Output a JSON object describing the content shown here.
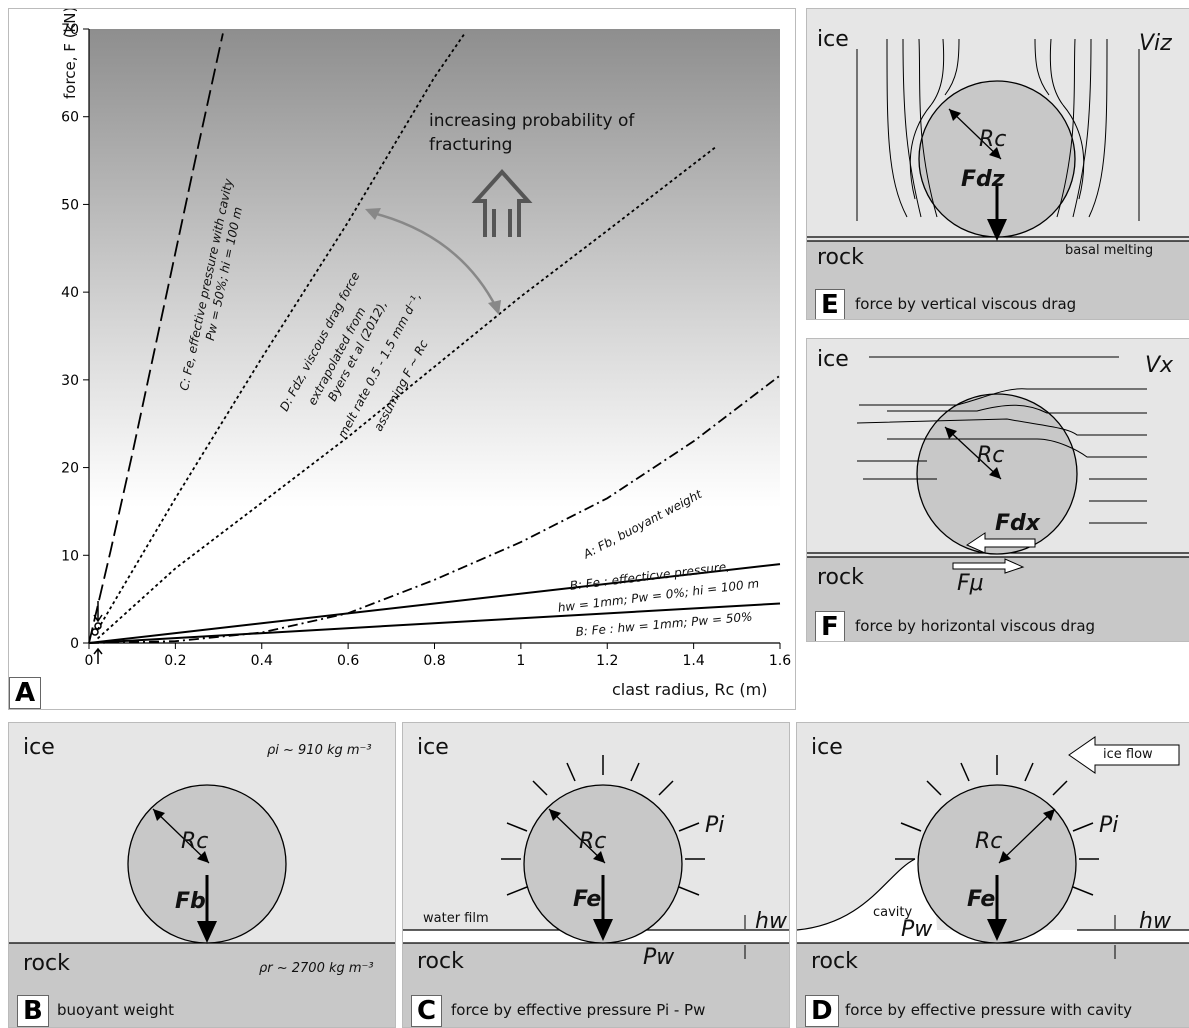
{
  "panel_a": {
    "tag": "A",
    "ylabel": "force, F (kN)",
    "xlabel": "clast radius, Rc (m)",
    "probability_text_1": "increasing  probability of",
    "probability_text_2": "fracturing",
    "curve_c_1": "C: Fe, effective pressure with cavity",
    "curve_c_2": "Pw = 50%; hi = 100 m",
    "curve_d_1": "D: Fdz, viscous drag force",
    "curve_d_2": "extrapolated from",
    "curve_d_3": "Byers et al (2012),",
    "curve_d_4": "melt rate 0.5 - 1.5 mm d⁻¹,",
    "curve_d_5": "assuming F ~ Rc",
    "curve_a": "A: Fb, buoyant weight",
    "curve_b1_1": "B: Fe : effecticve pressure,",
    "curve_b1_2": "hw = 1mm; Pw = 0%;  hi = 100 m",
    "curve_b2": "B: Fe : hw = 1mm; Pw = 50%"
  },
  "chart_data": {
    "type": "line",
    "xlabel": "clast radius, Rc (m)",
    "ylabel": "force, F (kN)",
    "xlim": [
      0,
      1.6
    ],
    "ylim": [
      0,
      70
    ],
    "x_ticks": [
      "0",
      "0.2",
      "0.4",
      "0.6",
      "0.8",
      "1",
      "1.2",
      "1.4",
      "1.6"
    ],
    "y_ticks": [
      "0",
      "10",
      "20",
      "30",
      "40",
      "50",
      "60",
      "70"
    ],
    "series": [
      {
        "name": "C: Fe, effective pressure with cavity",
        "style": "dashed-long",
        "x": [
          0,
          0.05,
          0.1,
          0.15,
          0.2,
          0.25,
          0.31
        ],
        "y": [
          0,
          10.5,
          21.5,
          33,
          44.5,
          56,
          69.5
        ]
      },
      {
        "name": "D: Fdz, viscous drag force (upper)",
        "style": "dotted",
        "x": [
          0.02,
          0.2,
          0.4,
          0.6,
          0.8,
          0.87
        ],
        "y": [
          1.5,
          16.5,
          32.5,
          48,
          64.5,
          69.5
        ]
      },
      {
        "name": "D: Fdz, viscous drag force (lower)",
        "style": "dotted",
        "x": [
          0.02,
          0.2,
          0.4,
          0.6,
          0.8,
          1.0,
          1.2,
          1.45
        ],
        "y": [
          0.5,
          8.5,
          16,
          23.5,
          31.5,
          39.5,
          47,
          56.5
        ]
      },
      {
        "name": "A: Fb, buoyant weight",
        "style": "dashdot",
        "x": [
          0,
          0.2,
          0.4,
          0.6,
          0.8,
          1.0,
          1.2,
          1.4,
          1.6
        ],
        "y": [
          0,
          0.2,
          1.2,
          3.4,
          7.2,
          11.5,
          16.5,
          23,
          30.5
        ]
      },
      {
        "name": "B: Fe : effecticve pressure, hw = 1mm; Pw = 0%; hi = 100 m",
        "style": "solid",
        "x": [
          0,
          1.6
        ],
        "y": [
          0,
          9
        ]
      },
      {
        "name": "B: Fe : hw = 1mm; Pw = 50%",
        "style": "solid",
        "x": [
          0,
          1.6
        ],
        "y": [
          0,
          4.5
        ]
      }
    ]
  },
  "panel_b": {
    "tag": "B",
    "caption": "buoyant weight",
    "ice": "ice",
    "rock": "rock",
    "rho_i": "ρi ~ 910 kg m⁻³",
    "rho_r": "ρr ~ 2700 kg m⁻³",
    "rc": "Rc",
    "force": "Fb"
  },
  "panel_c": {
    "tag": "C",
    "caption": "force by effective pressure Pi - Pw",
    "ice": "ice",
    "rock": "rock",
    "rc": "Rc",
    "force": "Fe",
    "pi": "Pi",
    "pw": "Pw",
    "hw": "hw",
    "water_film": "water film"
  },
  "panel_d": {
    "tag": "D",
    "caption": "force by effective pressure with cavity",
    "ice": "ice",
    "rock": "rock",
    "rc": "Rc",
    "force": "Fe",
    "pi": "Pi",
    "pw": "Pw",
    "hw": "hw",
    "cavity": "cavity",
    "ice_flow": "ice flow"
  },
  "panel_e": {
    "tag": "E",
    "caption": "force by vertical viscous drag",
    "ice": "ice",
    "rock": "rock",
    "rc": "Rc",
    "force": "Fdz",
    "v": "Viz",
    "basal": "basal melting"
  },
  "panel_f": {
    "tag": "F",
    "caption": "force by horizontal viscous drag",
    "ice": "ice",
    "rock": "rock",
    "rc": "Rc",
    "force": "Fdx",
    "v": "Vx",
    "fmu": "Fμ"
  }
}
